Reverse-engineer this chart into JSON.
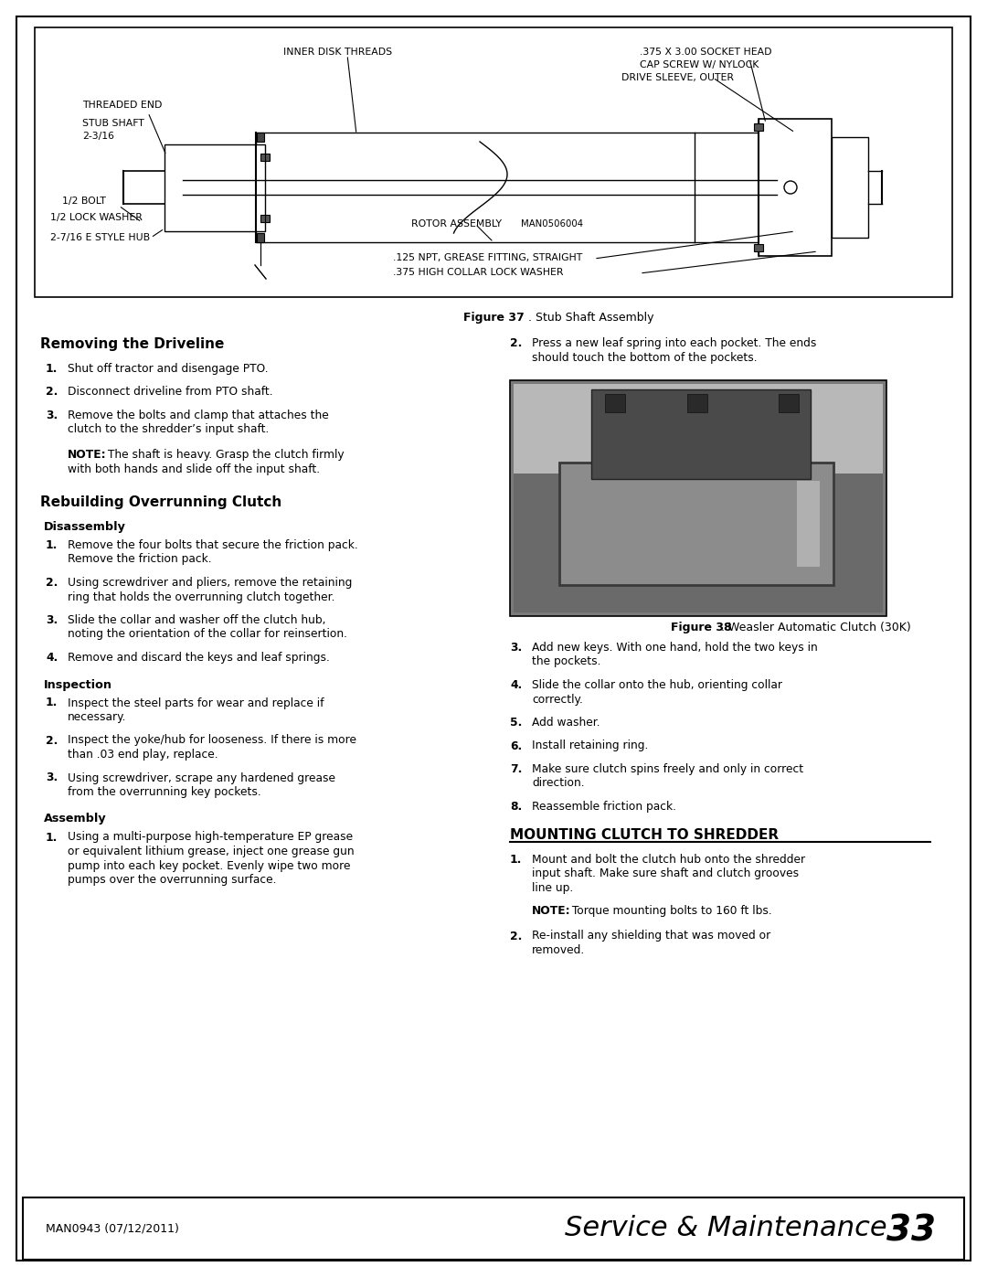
{
  "page_bg": "#ffffff",
  "section1_title": "Removing the Driveline",
  "section2_title": "Rebuilding Overrunning Clutch",
  "sub1_title": "Disassembly",
  "sub2_title": "Inspection",
  "sub3_title": "Assembly",
  "section3_title": "MOUNTING CLUTCH TO SHREDDER",
  "footer_left": "MAN0943 (07/12/2011)",
  "fig37_bold": "Figure 37",
  "fig37_normal": ". Stub Shaft Assembly",
  "fig38_bold": "Figure 38",
  "fig38_normal": ". Weasler Automatic Clutch (30K)",
  "removing_items": [
    [
      "Shut off tractor and disengage PTO."
    ],
    [
      "Disconnect driveline from PTO shaft."
    ],
    [
      "Remove the bolts and clamp that attaches the",
      "clutch to the shredder’s input shaft."
    ]
  ],
  "note1_bold": "NOTE:",
  "note1_rest": " The shaft is heavy. Grasp the clutch firmly",
  "note1_line2": "with both hands and slide off the input shaft.",
  "disassembly_items": [
    [
      "Remove the four bolts that secure the friction pack.",
      "Remove the friction pack."
    ],
    [
      "Using screwdriver and pliers, remove the retaining",
      "ring that holds the overrunning clutch together."
    ],
    [
      "Slide the collar and washer off the clutch hub,",
      "noting the orientation of the collar for reinsertion."
    ],
    [
      "Remove and discard the keys and leaf springs."
    ]
  ],
  "inspection_items": [
    [
      "Inspect the steel parts for wear and replace if",
      "necessary."
    ],
    [
      "Inspect the yoke/hub for looseness. If there is more",
      "than .03 end play, replace."
    ],
    [
      "Using screwdriver, scrape any hardened grease",
      "from the overrunning key pockets."
    ]
  ],
  "assembly_items": [
    [
      "Using a multi-purpose high-temperature EP grease",
      "or equivalent lithium grease, inject one grease gun",
      "pump into each key pocket. Evenly wipe two more",
      "pumps over the overrunning surface."
    ]
  ],
  "right_assembly_item2": [
    "Press a new leaf spring into each pocket. The ends",
    "should touch the bottom of the pockets."
  ],
  "right_assembly_items_3to8": [
    [
      "Add new keys. With one hand, hold the two keys in",
      "the pockets."
    ],
    [
      "Slide the collar onto the hub, orienting collar",
      "correctly."
    ],
    [
      "Add washer."
    ],
    [
      "Install retaining ring."
    ],
    [
      "Make sure clutch spins freely and only in correct",
      "direction."
    ],
    [
      "Reassemble friction pack."
    ]
  ],
  "mounting_item1": [
    "Mount and bolt the clutch hub onto the shredder",
    "input shaft. Make sure shaft and clutch grooves",
    "line up."
  ],
  "note2_bold": "NOTE:",
  "note2_rest": " Torque mounting bolts to 160 ft lbs.",
  "mounting_item2": [
    "Re-install any shielding that was moved or",
    "removed."
  ]
}
